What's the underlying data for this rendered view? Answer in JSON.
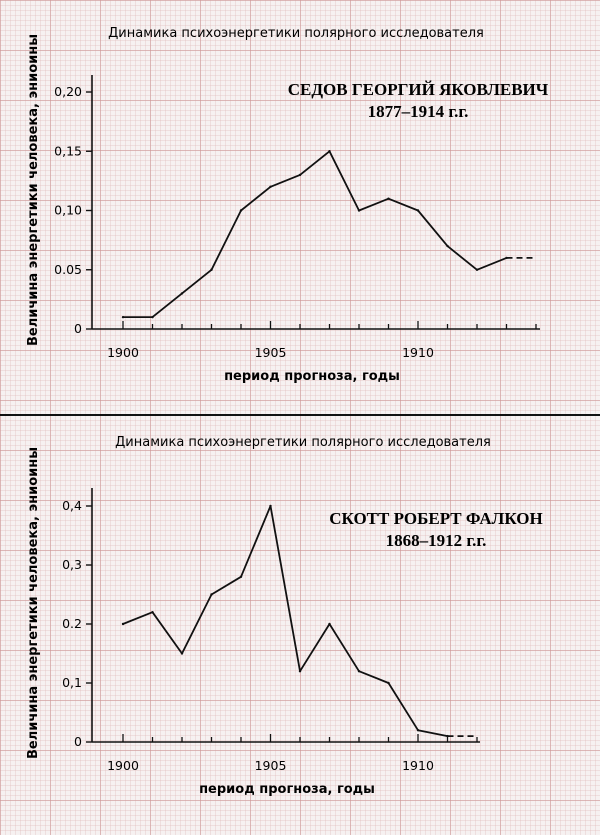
{
  "chart_data": [
    {
      "type": "line",
      "title": "Динамика психоэнергетики полярного исследователя",
      "annotation": {
        "name": "СЕДОВ ГЕОРГИЙ ЯКОВЛЕВИЧ",
        "years": "1877–1914 г.г."
      },
      "xlabel": "период прогноза, годы",
      "ylabel": "Величина энергетики человека, эниоины",
      "xlim": [
        1899,
        1914
      ],
      "ylim": [
        0,
        0.2
      ],
      "x_ticks": [
        1900,
        1905,
        1910
      ],
      "y_ticks": [
        0,
        0.05,
        0.1,
        0.15,
        0.2
      ],
      "y_tick_labels": [
        "0",
        "0.05",
        "0,10",
        "0,15",
        "0,20"
      ],
      "x_tick_labels": [
        "1900",
        "1905",
        "1910"
      ],
      "series": [
        {
          "x": [
            1900,
            1901,
            1902,
            1903,
            1904,
            1905,
            1906,
            1907,
            1908,
            1909,
            1910,
            1911,
            1912,
            1913
          ],
          "values": [
            0.01,
            0.01,
            0.03,
            0.05,
            0.1,
            0.12,
            0.13,
            0.15,
            0.1,
            0.11,
            0.1,
            0.07,
            0.05,
            0.06
          ],
          "dashed_extension": {
            "x": [
              1913,
              1914
            ],
            "values": [
              0.06,
              0.06
            ]
          }
        }
      ],
      "grid": true
    },
    {
      "type": "line",
      "title": "Динамика психоэнергетики полярного исследователя",
      "annotation": {
        "name": "СКОТТ РОБЕРТ ФАЛКОН",
        "years": "1868–1912 г.г."
      },
      "xlabel": "период прогноза, годы",
      "ylabel": "Величина энергетики человека, эниоины",
      "xlim": [
        1899,
        1912
      ],
      "ylim": [
        0,
        0.4
      ],
      "x_ticks": [
        1900,
        1905,
        1910
      ],
      "y_ticks": [
        0,
        0.1,
        0.2,
        0.3,
        0.4
      ],
      "y_tick_labels": [
        "0",
        "0,1",
        "0.2",
        "0,3",
        "0,4"
      ],
      "x_tick_labels": [
        "1900",
        "1905",
        "1910"
      ],
      "series": [
        {
          "x": [
            1900,
            1901,
            1902,
            1903,
            1904,
            1905,
            1906,
            1907,
            1908,
            1909,
            1910,
            1911
          ],
          "values": [
            0.2,
            0.22,
            0.15,
            0.25,
            0.28,
            0.4,
            0.12,
            0.2,
            0.12,
            0.1,
            0.02,
            0.01
          ],
          "dashed_extension": {
            "x": [
              1911,
              1912
            ],
            "values": [
              0.01,
              0.01
            ]
          }
        }
      ],
      "grid": true
    }
  ]
}
